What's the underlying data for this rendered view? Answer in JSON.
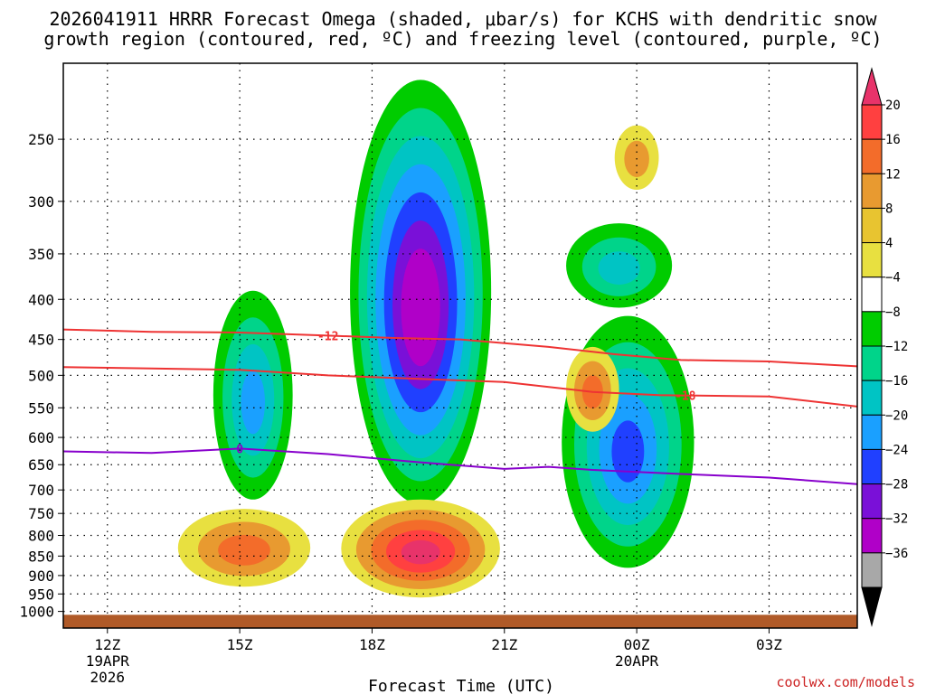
{
  "title_line1": "2026041911 HRRR Forecast Omega (shaded, μbar/s) for KCHS with dendritic snow",
  "title_line2": "growth region (contoured, red, ºC) and freezing level (contoured, purple, ºC)",
  "credit": "coolwx.com/models",
  "chart_data": {
    "type": "heatmap",
    "title": "2026041911 HRRR Forecast Omega (shaded, μbar/s) for KCHS with dendritic snow growth region (contoured, red, ºC) and freezing level (contoured, purple, ºC)",
    "xlabel": "Forecast Time (UTC)",
    "ylabel": "",
    "x_ticks": [
      {
        "hour": 0,
        "label": "12Z",
        "sub1": "19APR",
        "sub2": "2026"
      },
      {
        "hour": 3,
        "label": "15Z",
        "sub1": "",
        "sub2": ""
      },
      {
        "hour": 6,
        "label": "18Z",
        "sub1": "",
        "sub2": ""
      },
      {
        "hour": 9,
        "label": "21Z",
        "sub1": "",
        "sub2": ""
      },
      {
        "hour": 12,
        "label": "00Z",
        "sub1": "20APR",
        "sub2": ""
      },
      {
        "hour": 15,
        "label": "03Z",
        "sub1": "",
        "sub2": ""
      }
    ],
    "xlim_hours": [
      -1.0,
      17.0
    ],
    "y_axis_scale": "log-pressure",
    "ylim_hPa": [
      1050,
      200
    ],
    "y_ticks": [
      250,
      300,
      350,
      400,
      450,
      500,
      550,
      600,
      650,
      700,
      750,
      800,
      850,
      900,
      950,
      1000
    ],
    "grid": true,
    "colorbar": {
      "labels": [
        "20",
        "16",
        "12",
        "8",
        "4",
        "−4",
        "−8",
        "−12",
        "−16",
        "−20",
        "−24",
        "−28",
        "−32",
        "−36"
      ],
      "colors": [
        "#e8336a",
        "#ff4040",
        "#f36c2a",
        "#e89a30",
        "#e8c430",
        "#e8e040",
        "#ffffff",
        "#00cc00",
        "#00d48a",
        "#00c4c4",
        "#1aa0ff",
        "#2040ff",
        "#7a10d8",
        "#b000c8",
        "#a8a8a8",
        "#000000"
      ]
    },
    "omega_features": [
      {
        "name": "ascent-core-18z",
        "hour_range": [
          5.5,
          8.7
        ],
        "p_range_hPa": [
          210,
          730
        ],
        "peak_ubar_s": -32
      },
      {
        "name": "ascent-15z",
        "hour_range": [
          2.4,
          4.2
        ],
        "p_range_hPa": [
          390,
          720
        ],
        "peak_ubar_s": -16
      },
      {
        "name": "ascent-23z",
        "hour_range": [
          10.3,
          13.3
        ],
        "p_range_hPa": [
          420,
          880
        ],
        "peak_ubar_s": -20
      },
      {
        "name": "ascent-23z-upper",
        "hour_range": [
          10.4,
          12.8
        ],
        "p_range_hPa": [
          320,
          410
        ],
        "peak_ubar_s": -12
      },
      {
        "name": "descent-19z",
        "hour_range": [
          5.3,
          8.9
        ],
        "p_range_hPa": [
          720,
          960
        ],
        "peak_ubar_s": 20
      },
      {
        "name": "descent-15z",
        "hour_range": [
          1.6,
          4.6
        ],
        "p_range_hPa": [
          740,
          930
        ],
        "peak_ubar_s": 12
      },
      {
        "name": "descent-2230z",
        "hour_range": [
          10.4,
          11.6
        ],
        "p_range_hPa": [
          460,
          590
        ],
        "peak_ubar_s": 12
      },
      {
        "name": "descent-0030z",
        "hour_range": [
          11.5,
          12.5
        ],
        "p_range_hPa": [
          240,
          290
        ],
        "peak_ubar_s": 8
      }
    ],
    "dendritic_contours": [
      {
        "label": "-12",
        "color": "#ee3333",
        "points": [
          [
            -1.0,
            437
          ],
          [
            1.0,
            440
          ],
          [
            3.0,
            441
          ],
          [
            5.0,
            445
          ],
          [
            6.5,
            448
          ],
          [
            8.0,
            450
          ],
          [
            10.0,
            460
          ],
          [
            11.5,
            470
          ],
          [
            13.0,
            478
          ],
          [
            15.0,
            480
          ],
          [
            17.0,
            487
          ]
        ]
      },
      {
        "label": "-18",
        "color": "#ee3333",
        "points": [
          [
            -1.0,
            488
          ],
          [
            1.0,
            490
          ],
          [
            3.0,
            492
          ],
          [
            5.0,
            500
          ],
          [
            7.0,
            505
          ],
          [
            9.0,
            510
          ],
          [
            11.0,
            525
          ],
          [
            12.5,
            530
          ],
          [
            15.0,
            532
          ],
          [
            17.0,
            548
          ]
        ]
      }
    ],
    "freezing_level": {
      "label": "0",
      "color": "#8800cc",
      "points": [
        [
          -1.0,
          625
        ],
        [
          1.0,
          628
        ],
        [
          3.0,
          620
        ],
        [
          5.0,
          630
        ],
        [
          7.0,
          645
        ],
        [
          9.0,
          658
        ],
        [
          10.0,
          654
        ],
        [
          11.0,
          660
        ],
        [
          13.0,
          668
        ],
        [
          15.0,
          675
        ],
        [
          17.0,
          688
        ]
      ]
    },
    "ground_hPa": 1010
  }
}
